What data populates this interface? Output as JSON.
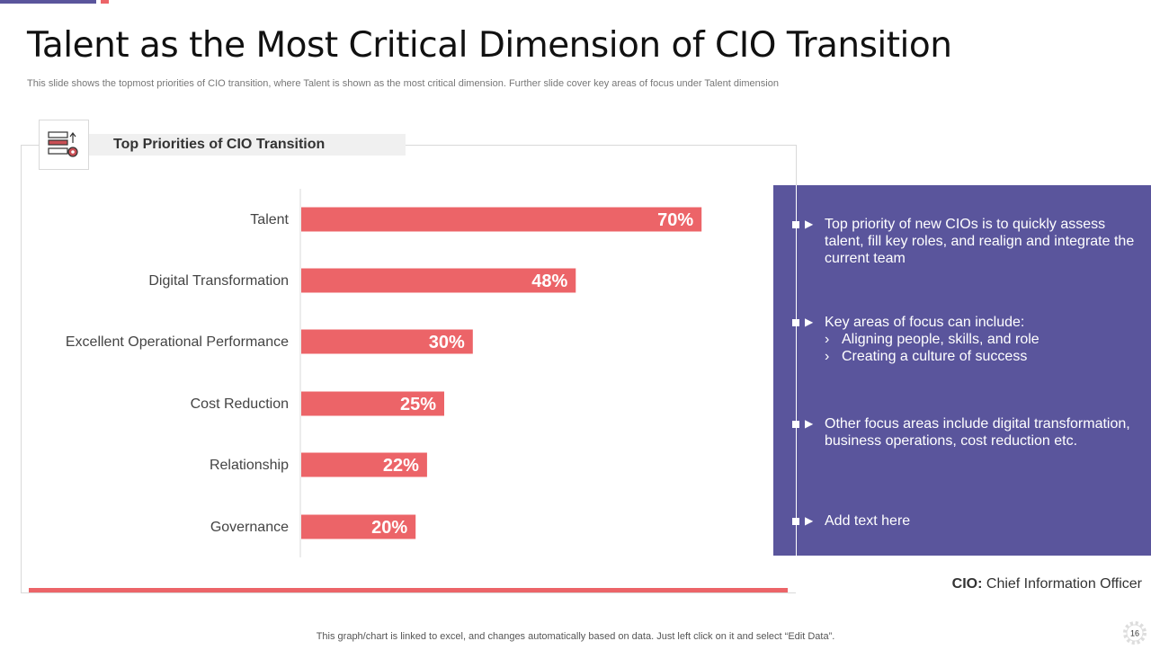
{
  "slide": {
    "title": "Talent as the Most Critical Dimension of CIO Transition",
    "subtitle": "This slide shows the topmost priorities of CIO transition, where Talent is shown as the most critical dimension. Further slide cover key  areas of focus under Talent dimension",
    "footer": "This graph/chart is linked to excel,  and changes automatically based on data. Just left click on it and select “Edit Data”.",
    "page_number": "16",
    "cio_abbr": "CIO:",
    "cio_full": " Chief Information  Officer"
  },
  "chart_data": {
    "type": "bar",
    "orientation": "horizontal",
    "title": "Top Priorities of CIO Transition",
    "categories": [
      "Talent",
      "Digital Transformation",
      "Excellent Operational Performance",
      "Cost Reduction",
      "Relationship",
      "Governance"
    ],
    "values": [
      70,
      48,
      30,
      25,
      22,
      20
    ],
    "data_labels": [
      "70%",
      "48%",
      "30%",
      "25%",
      "22%",
      "20%"
    ],
    "xlim": [
      0,
      100
    ],
    "grid": false,
    "bar_color": "#ec6468"
  },
  "panel": {
    "bullets": [
      {
        "text": "Top priority of new CIOs is to quickly assess talent, fill key roles, and realign and integrate the current team"
      },
      {
        "text": "Key areas of focus can include:",
        "subitems": [
          "Aligning people, skills, and role",
          "Creating a culture  of success"
        ]
      },
      {
        "text": "Other focus areas include digital transformation, business operations, cost reduction etc."
      },
      {
        "text": "Add text here"
      }
    ],
    "color": "#5a559c"
  }
}
